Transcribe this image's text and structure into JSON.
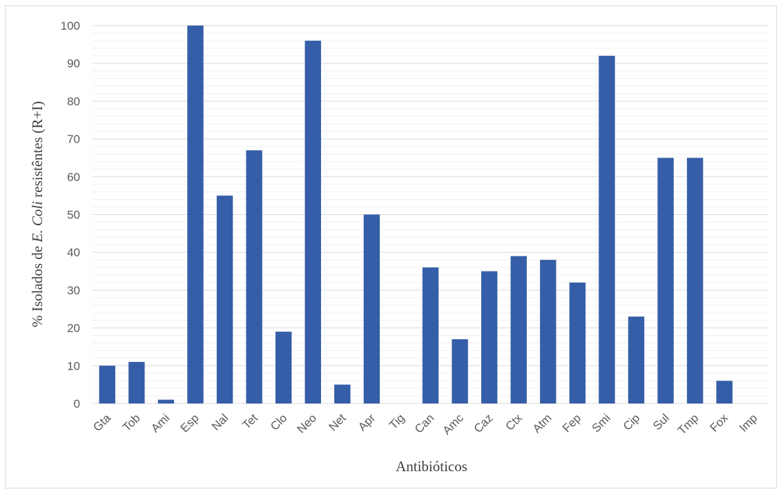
{
  "chart_data": {
    "type": "bar",
    "title": "",
    "xlabel": "Antibióticos",
    "ylabel": {
      "prefix": "% Isolados de ",
      "italic": "E. Coli",
      "suffix": " resistêntes (R+I)"
    },
    "ylim": [
      0,
      100
    ],
    "yticks": [
      0,
      10,
      20,
      30,
      40,
      50,
      60,
      70,
      80,
      90,
      100
    ],
    "minor_grid_step": 2,
    "grid": true,
    "legend": "none",
    "bar_color": "#365ea8",
    "grid_color": "#d9d9d9",
    "categories": [
      "Gta",
      "Tob",
      "Ami",
      "Esp",
      "Nal",
      "Tet",
      "Clo",
      "Neo",
      "Net",
      "Apr",
      "Tig",
      "Can",
      "Amc",
      "Caz",
      "Ctx",
      "Atm",
      "Fep",
      "Smi",
      "Cip",
      "Sul",
      "Tmp",
      "Fox",
      "Imp"
    ],
    "values": [
      10,
      11,
      1,
      100,
      55,
      67,
      19,
      96,
      5,
      50,
      0,
      36,
      17,
      35,
      39,
      38,
      32,
      92,
      23,
      65,
      65,
      6,
      0
    ]
  }
}
